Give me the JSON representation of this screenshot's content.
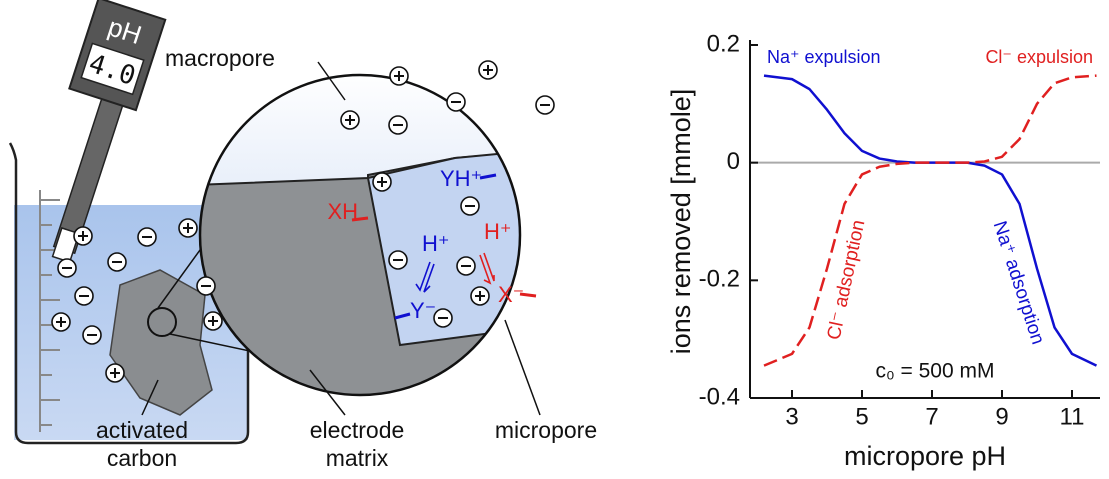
{
  "diagram": {
    "ph_meter": {
      "label": "pH",
      "value": "4.0"
    },
    "labels": {
      "macropore": "macropore",
      "activated_carbon": [
        "activated",
        "carbon"
      ],
      "electrode_matrix": [
        "electrode",
        "matrix"
      ],
      "micropore": "micropore"
    },
    "species": {
      "xh": "XH",
      "yh": "YH⁺",
      "h_blue": "H⁺",
      "y": "Y⁻",
      "h_red": "H⁺",
      "x": "X⁻"
    }
  },
  "chart_data": {
    "type": "line",
    "ylabel": "ions removed [mmole]",
    "xlabel": "micropore pH",
    "x": [
      2.2,
      3,
      3.5,
      4,
      4.5,
      5,
      5.5,
      6,
      6.5,
      7,
      7.5,
      8,
      8.5,
      9,
      9.5,
      10,
      10.5,
      11,
      11.7
    ],
    "series": [
      {
        "name": "Na⁺",
        "color": "#1010d0",
        "dash": false,
        "values": [
          0.148,
          0.142,
          0.125,
          0.09,
          0.05,
          0.02,
          0.007,
          0.002,
          0,
          0,
          0,
          0,
          -0.005,
          -0.02,
          -0.07,
          -0.18,
          -0.28,
          -0.325,
          -0.345
        ]
      },
      {
        "name": "Cl⁻",
        "color": "#e02020",
        "dash": true,
        "values": [
          -0.345,
          -0.325,
          -0.28,
          -0.18,
          -0.07,
          -0.02,
          -0.007,
          -0.002,
          0,
          0,
          0,
          0,
          0.002,
          0.01,
          0.04,
          0.1,
          0.135,
          0.145,
          0.148
        ]
      }
    ],
    "annotations": [
      "Na⁺ expulsion",
      "Cl⁻ expulsion",
      "Cl⁻ adsorption",
      "Na⁺ adsorption",
      "c₀ = 500 mM"
    ],
    "xlim": [
      1.8,
      11.8
    ],
    "ylim": [
      -0.4,
      0.2
    ],
    "xticks": [
      3,
      5,
      7,
      9,
      11
    ],
    "yticks": [
      -0.4,
      -0.2,
      0,
      0.2
    ],
    "zero_line": true
  }
}
